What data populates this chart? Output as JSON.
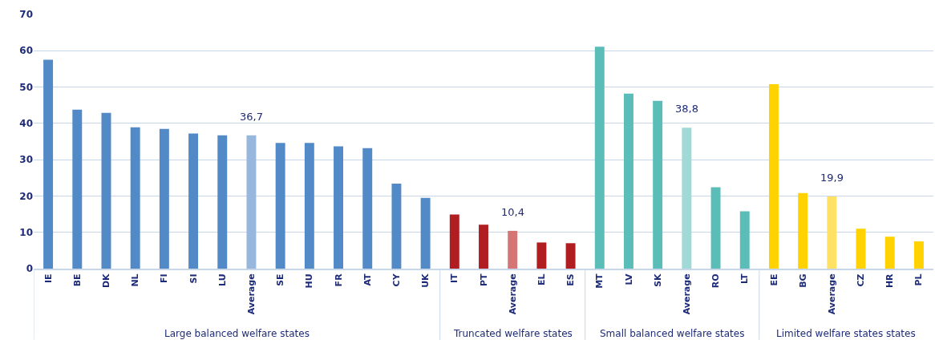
{
  "chart_data": {
    "type": "bar",
    "categories": [
      "IE",
      "BE",
      "DK",
      "NL",
      "FI",
      "SI",
      "LU",
      "Average",
      "SE",
      "HU",
      "FR",
      "AT",
      "CY",
      "UK",
      "IT",
      "PT",
      "Average",
      "EL",
      "ES",
      "MT",
      "LV",
      "SK",
      "Average",
      "RO",
      "LT",
      "EE",
      "BG",
      "Average",
      "CZ",
      "HR",
      "PL"
    ],
    "series": [
      {
        "colors": [
          "#5289c7",
          "#5289c7",
          "#5289c7",
          "#5289c7",
          "#5289c7",
          "#5289c7",
          "#5289c7",
          "#97b7dc",
          "#5289c7",
          "#5289c7",
          "#5289c7",
          "#5289c7",
          "#5289c7",
          "#5289c7",
          null,
          null,
          null,
          null,
          null,
          null,
          null,
          null,
          null,
          null,
          null,
          null,
          null,
          null,
          null,
          null,
          null
        ],
        "values": [
          57.5,
          43.8,
          42.9,
          38.9,
          38.5,
          37.2,
          36.7,
          36.7,
          34.6,
          34.6,
          33.7,
          33.2,
          23.4,
          19.5,
          null,
          null,
          null,
          null,
          null,
          null,
          null,
          null,
          null,
          null,
          null,
          null,
          null,
          null,
          null,
          null,
          null
        ],
        "value_labels": [
          null,
          null,
          null,
          null,
          null,
          null,
          null,
          "36,7",
          null,
          null,
          null,
          null,
          null,
          null,
          null,
          null,
          null,
          null,
          null,
          null,
          null,
          null,
          null,
          null,
          null,
          null,
          null,
          null,
          null,
          null,
          null
        ]
      },
      {
        "colors": [
          null,
          null,
          null,
          null,
          null,
          null,
          null,
          null,
          null,
          null,
          null,
          null,
          null,
          null,
          "#b01e22",
          "#b01e22",
          "#d37674",
          "#b01e22",
          "#b01e22",
          null,
          null,
          null,
          null,
          null,
          null,
          null,
          null,
          null,
          null,
          null,
          null
        ],
        "values": [
          null,
          null,
          null,
          null,
          null,
          null,
          null,
          null,
          null,
          null,
          null,
          null,
          null,
          null,
          14.9,
          12.1,
          10.4,
          7.2,
          7.0,
          null,
          null,
          null,
          null,
          null,
          null,
          null,
          null,
          null,
          null,
          null,
          null
        ],
        "value_labels": [
          null,
          null,
          null,
          null,
          null,
          null,
          null,
          null,
          null,
          null,
          null,
          null,
          null,
          null,
          null,
          null,
          "10,4",
          null,
          null,
          null,
          null,
          null,
          null,
          null,
          null,
          null,
          null,
          null,
          null,
          null,
          null
        ]
      },
      {
        "colors": [
          null,
          null,
          null,
          null,
          null,
          null,
          null,
          null,
          null,
          null,
          null,
          null,
          null,
          null,
          null,
          null,
          null,
          null,
          null,
          "#5bbdb7",
          "#5bbdb7",
          "#5bbdb7",
          "#a0d9d5",
          "#5bbdb7",
          "#5bbdb7",
          null,
          null,
          null,
          null,
          null,
          null
        ],
        "values": [
          null,
          null,
          null,
          null,
          null,
          null,
          null,
          null,
          null,
          null,
          null,
          null,
          null,
          null,
          null,
          null,
          null,
          null,
          null,
          61.1,
          48.2,
          46.2,
          38.8,
          22.4,
          15.8,
          null,
          null,
          null,
          null,
          null,
          null
        ],
        "value_labels": [
          null,
          null,
          null,
          null,
          null,
          null,
          null,
          null,
          null,
          null,
          null,
          null,
          null,
          null,
          null,
          null,
          null,
          null,
          null,
          null,
          null,
          null,
          "38,8",
          null,
          null,
          null,
          null,
          null,
          null,
          null,
          null
        ]
      },
      {
        "colors": [
          null,
          null,
          null,
          null,
          null,
          null,
          null,
          null,
          null,
          null,
          null,
          null,
          null,
          null,
          null,
          null,
          null,
          null,
          null,
          null,
          null,
          null,
          null,
          null,
          null,
          "#ffd200",
          "#ffd200",
          "#ffe264",
          "#ffd200",
          "#ffd200",
          "#ffd200"
        ],
        "values": [
          null,
          null,
          null,
          null,
          null,
          null,
          null,
          null,
          null,
          null,
          null,
          null,
          null,
          null,
          null,
          null,
          null,
          null,
          null,
          null,
          null,
          null,
          null,
          null,
          null,
          50.8,
          20.8,
          19.9,
          11.0,
          8.8,
          7.5
        ],
        "value_labels": [
          null,
          null,
          null,
          null,
          null,
          null,
          null,
          null,
          null,
          null,
          null,
          null,
          null,
          null,
          null,
          null,
          null,
          null,
          null,
          null,
          null,
          null,
          null,
          null,
          null,
          null,
          null,
          "19,9",
          null,
          null,
          null
        ]
      }
    ],
    "annotations": [
      "Large balanced welfare states",
      "Truncated welfare states",
      "Small balanced welfare states",
      "Limited welfare states states"
    ],
    "ylim": [
      0,
      70
    ],
    "yticks": [
      0,
      10,
      20,
      30,
      40,
      50,
      60,
      70
    ],
    "grid": "y"
  }
}
